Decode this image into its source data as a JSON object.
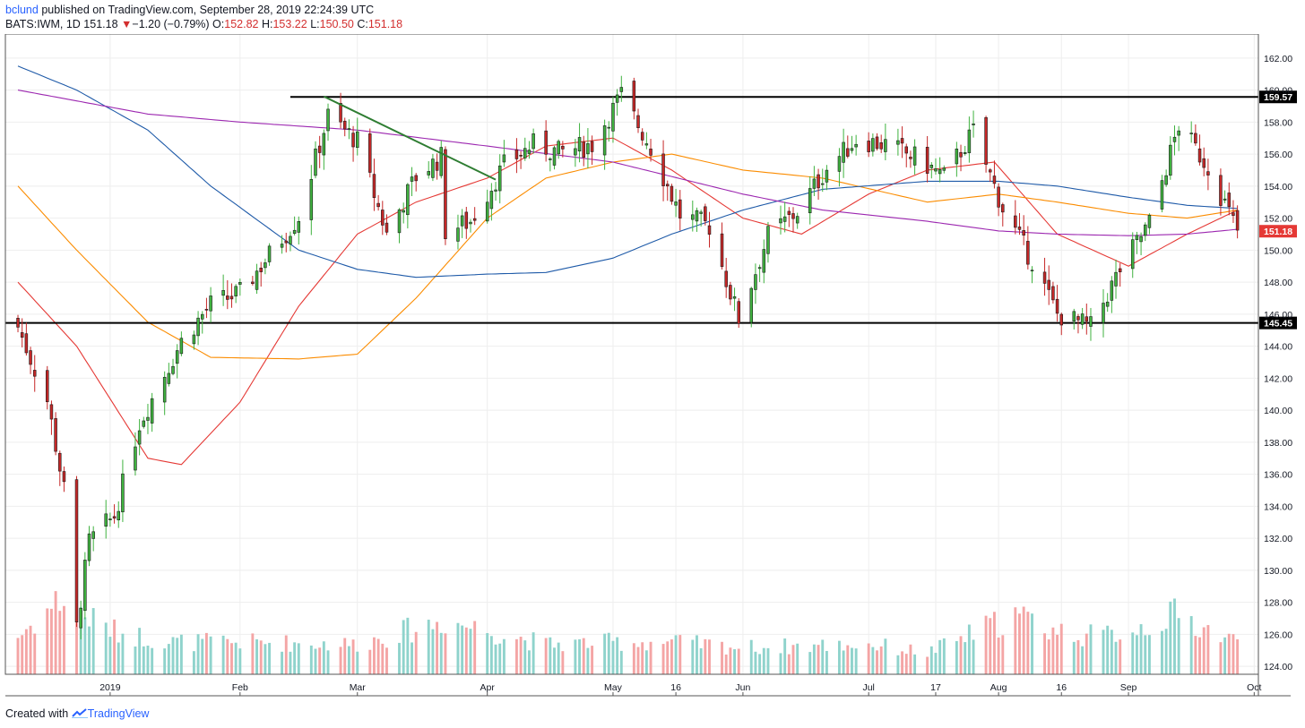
{
  "header": {
    "author": "bclund",
    "published_text": " published on TradingView.com, September 28, 2019 22:24:39 UTC",
    "symbol": "BATS:IWM, 1D",
    "last": "151.18",
    "change_arrow": "▼",
    "change": "−1.20 (−0.79%)",
    "o_label": "O:",
    "o_value": "152.82",
    "h_label": "H:",
    "h_value": "153.22",
    "l_label": "L:",
    "l_value": "150.50",
    "c_label": "C:",
    "c_value": "151.18"
  },
  "footer": {
    "created_with": "Created with",
    "brand": "TradingView"
  },
  "colors": {
    "up": "#26a69a",
    "up_body": "#3fb23f",
    "down": "#c62828",
    "vol_up": "#8fd3cc",
    "vol_down": "#f4a5a5",
    "ma_red": "#e53935",
    "ma_orange": "#fb8c00",
    "ma_blue": "#1e5aa8",
    "ma_purple": "#9c27b0",
    "trend": "#2e7d32",
    "grid": "#eeeeee"
  },
  "chart_data": {
    "type": "candlestick",
    "x_tick_labels": [
      "2019",
      "Feb",
      "Mar",
      "Apr",
      "May",
      "16",
      "Jun",
      "Jul",
      "17",
      "Aug",
      "16",
      "Sep",
      "Oct"
    ],
    "y_tick_labels": [
      "124.00",
      "126.00",
      "128.00",
      "130.00",
      "132.00",
      "134.00",
      "136.00",
      "138.00",
      "140.00",
      "142.00",
      "144.00",
      "146.00",
      "148.00",
      "150.00",
      "152.00",
      "154.00",
      "156.00",
      "158.00",
      "160.00",
      "162.00"
    ],
    "ylim": [
      123.5,
      163.5
    ],
    "horizontal_levels": [
      {
        "value": 159.57,
        "label": "159.57"
      },
      {
        "value": 145.45,
        "label": "145.45"
      }
    ],
    "last_price": {
      "value": 151.18,
      "label": "151.18"
    },
    "trendline": {
      "from": [
        "2019-02-21",
        159.6
      ],
      "to": [
        "2019-04-03",
        154.4
      ]
    },
    "date_range": [
      "2018-12-10",
      "2019-09-27"
    ],
    "close_anchors": [
      [
        "2018-12-10",
        145.2
      ],
      [
        "2018-12-17",
        140.6
      ],
      [
        "2018-12-21",
        135.0
      ],
      [
        "2018-12-24",
        126.4
      ],
      [
        "2018-12-27",
        131.8
      ],
      [
        "2019-01-02",
        133.4
      ],
      [
        "2019-01-08",
        139.2
      ],
      [
        "2019-01-18",
        144.3
      ],
      [
        "2019-01-25",
        146.6
      ],
      [
        "2019-02-01",
        147.3
      ],
      [
        "2019-02-08",
        149.7
      ],
      [
        "2019-02-15",
        152.1
      ],
      [
        "2019-02-22",
        158.4
      ],
      [
        "2019-03-01",
        156.8
      ],
      [
        "2019-03-08",
        151.0
      ],
      [
        "2019-03-15",
        154.6
      ],
      [
        "2019-03-21",
        155.8
      ],
      [
        "2019-03-22",
        151.2
      ],
      [
        "2019-03-28",
        151.8
      ],
      [
        "2019-04-05",
        155.3
      ],
      [
        "2019-04-12",
        156.6
      ],
      [
        "2019-04-18",
        156.1
      ],
      [
        "2019-04-26",
        156.6
      ],
      [
        "2019-05-03",
        159.7
      ],
      [
        "2019-05-10",
        156.4
      ],
      [
        "2019-05-17",
        152.2
      ],
      [
        "2019-05-24",
        151.5
      ],
      [
        "2019-05-31",
        145.7
      ],
      [
        "2019-06-07",
        150.9
      ],
      [
        "2019-06-14",
        152.4
      ],
      [
        "2019-06-21",
        155.1
      ],
      [
        "2019-06-28",
        156.9
      ],
      [
        "2019-07-05",
        156.6
      ],
      [
        "2019-07-12",
        155.8
      ],
      [
        "2019-07-19",
        154.6
      ],
      [
        "2019-07-26",
        157.4
      ],
      [
        "2019-08-02",
        152.6
      ],
      [
        "2019-08-09",
        149.3
      ],
      [
        "2019-08-15",
        146.0
      ],
      [
        "2019-08-23",
        145.2
      ],
      [
        "2019-08-30",
        148.8
      ],
      [
        "2019-09-06",
        151.7
      ],
      [
        "2019-09-13",
        157.8
      ],
      [
        "2019-09-20",
        155.2
      ],
      [
        "2019-09-27",
        151.18
      ]
    ],
    "moving_averages": [
      {
        "color_key": "ma_red",
        "points": [
          [
            "2018-12-10",
            148.0
          ],
          [
            "2018-12-24",
            144.0
          ],
          [
            "2019-01-10",
            137.0
          ],
          [
            "2019-01-18",
            136.6
          ],
          [
            "2019-02-01",
            140.5
          ],
          [
            "2019-02-15",
            146.5
          ],
          [
            "2019-03-01",
            151.0
          ],
          [
            "2019-03-15",
            153.0
          ],
          [
            "2019-04-01",
            154.5
          ],
          [
            "2019-04-15",
            156.5
          ],
          [
            "2019-05-01",
            157.0
          ],
          [
            "2019-05-15",
            155.0
          ],
          [
            "2019-06-01",
            152.0
          ],
          [
            "2019-06-15",
            151.0
          ],
          [
            "2019-07-01",
            153.5
          ],
          [
            "2019-07-15",
            155.0
          ],
          [
            "2019-07-31",
            155.5
          ],
          [
            "2019-08-15",
            151.0
          ],
          [
            "2019-09-01",
            149.0
          ],
          [
            "2019-09-15",
            151.0
          ],
          [
            "2019-09-27",
            152.5
          ]
        ]
      },
      {
        "color_key": "ma_orange",
        "points": [
          [
            "2018-12-10",
            154.0
          ],
          [
            "2018-12-24",
            150.0
          ],
          [
            "2019-01-10",
            145.5
          ],
          [
            "2019-01-25",
            143.3
          ],
          [
            "2019-02-15",
            143.2
          ],
          [
            "2019-03-01",
            143.5
          ],
          [
            "2019-03-15",
            147.0
          ],
          [
            "2019-04-01",
            152.0
          ],
          [
            "2019-04-15",
            154.5
          ],
          [
            "2019-05-01",
            155.5
          ],
          [
            "2019-05-15",
            156.0
          ],
          [
            "2019-06-01",
            155.0
          ],
          [
            "2019-06-20",
            154.5
          ],
          [
            "2019-07-15",
            153.0
          ],
          [
            "2019-08-01",
            153.5
          ],
          [
            "2019-08-15",
            153.0
          ],
          [
            "2019-09-01",
            152.3
          ],
          [
            "2019-09-15",
            152.0
          ],
          [
            "2019-09-27",
            152.5
          ]
        ]
      },
      {
        "color_key": "ma_blue",
        "points": [
          [
            "2018-12-10",
            161.5
          ],
          [
            "2018-12-24",
            160.0
          ],
          [
            "2019-01-10",
            157.5
          ],
          [
            "2019-01-25",
            154.0
          ],
          [
            "2019-02-15",
            150.0
          ],
          [
            "2019-03-01",
            148.8
          ],
          [
            "2019-03-15",
            148.3
          ],
          [
            "2019-04-01",
            148.5
          ],
          [
            "2019-04-15",
            148.6
          ],
          [
            "2019-05-01",
            149.5
          ],
          [
            "2019-05-15",
            151.0
          ],
          [
            "2019-06-01",
            152.5
          ],
          [
            "2019-06-20",
            153.8
          ],
          [
            "2019-07-15",
            154.3
          ],
          [
            "2019-08-01",
            154.3
          ],
          [
            "2019-08-15",
            154.0
          ],
          [
            "2019-09-01",
            153.3
          ],
          [
            "2019-09-15",
            152.8
          ],
          [
            "2019-09-27",
            152.6
          ]
        ]
      },
      {
        "color_key": "ma_purple",
        "points": [
          [
            "2018-12-10",
            160.0
          ],
          [
            "2019-01-10",
            158.5
          ],
          [
            "2019-02-01",
            158.0
          ],
          [
            "2019-03-01",
            157.5
          ],
          [
            "2019-04-01",
            156.5
          ],
          [
            "2019-05-01",
            155.5
          ],
          [
            "2019-06-01",
            153.5
          ],
          [
            "2019-06-20",
            152.5
          ],
          [
            "2019-07-15",
            151.8
          ],
          [
            "2019-08-01",
            151.2
          ],
          [
            "2019-08-15",
            151.0
          ],
          [
            "2019-09-01",
            150.9
          ],
          [
            "2019-09-15",
            151.0
          ],
          [
            "2019-09-27",
            151.3
          ]
        ]
      }
    ],
    "volume_profile": [
      [
        "2018-12-10",
        0.35
      ],
      [
        "2018-12-20",
        0.7
      ],
      [
        "2018-12-26",
        0.55
      ],
      [
        "2019-01-02",
        0.4
      ],
      [
        "2019-01-15",
        0.3
      ],
      [
        "2019-02-01",
        0.3
      ],
      [
        "2019-03-01",
        0.28
      ],
      [
        "2019-03-22",
        0.5
      ],
      [
        "2019-04-15",
        0.28
      ],
      [
        "2019-05-01",
        0.3
      ],
      [
        "2019-05-15",
        0.3
      ],
      [
        "2019-06-01",
        0.25
      ],
      [
        "2019-07-01",
        0.28
      ],
      [
        "2019-07-15",
        0.2
      ],
      [
        "2019-08-05",
        0.55
      ],
      [
        "2019-08-15",
        0.4
      ],
      [
        "2019-08-25",
        0.35
      ],
      [
        "2019-09-05",
        0.45
      ],
      [
        "2019-09-12",
        0.55
      ],
      [
        "2019-09-27",
        0.3
      ]
    ]
  }
}
